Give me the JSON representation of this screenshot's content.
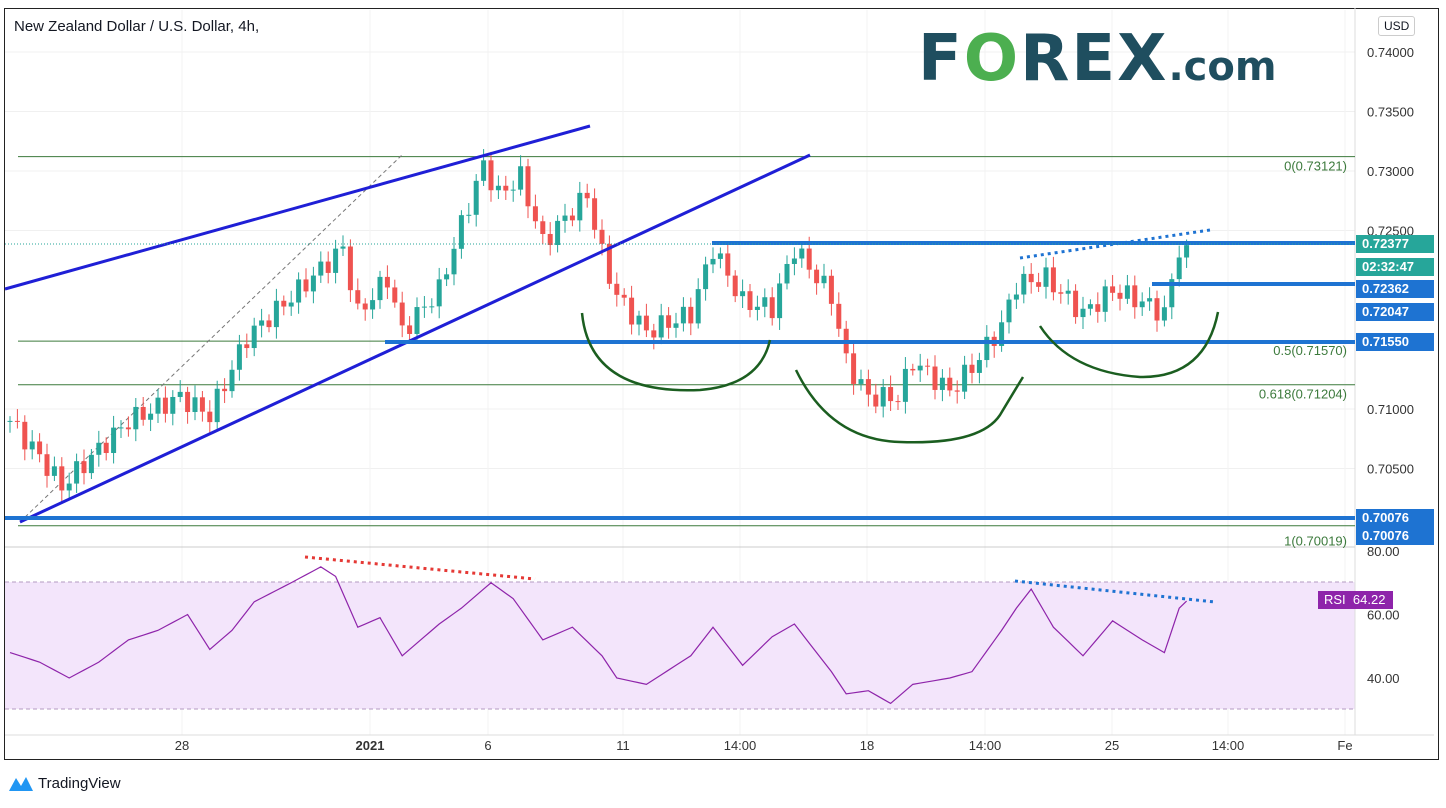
{
  "header": {
    "title": "New Zealand Dollar / U.S. Dollar, 4h,",
    "currency": "USD"
  },
  "logo": {
    "brand_a": "F",
    "brand_o": "O",
    "brand_b": "REX",
    ".com": ".com"
  },
  "footer": {
    "brand": "TradingView"
  },
  "colors": {
    "up": "#26a69a",
    "down": "#ef5350",
    "levels": "#1e73d2",
    "trend": "#1f1fd6",
    "fib": "#3c7a3c",
    "rsi": "#8e24aa",
    "rsi_band": "#f3e5fb"
  },
  "chart_data": [
    {
      "type": "candlestick",
      "title": "New Zealand Dollar / U.S. Dollar, 4h,",
      "ylim": [
        0.7,
        0.74
      ],
      "y_ticks": [
        "0.74000",
        "0.73500",
        "0.73000",
        "0.72500",
        "0.71000",
        "0.70500"
      ],
      "x_ticks": [
        "28",
        "2021",
        "6",
        "11",
        "14:00",
        "18",
        "14:00",
        "25",
        "14:00",
        "Fe"
      ],
      "price_path_note_units": "bar index, price",
      "price_path": [
        [
          0,
          0.709
        ],
        [
          4,
          0.706
        ],
        [
          7,
          0.7035
        ],
        [
          11,
          0.706
        ],
        [
          16,
          0.709
        ],
        [
          23,
          0.711
        ],
        [
          27,
          0.7095
        ],
        [
          32,
          0.716
        ],
        [
          39,
          0.72
        ],
        [
          45,
          0.7235
        ],
        [
          47,
          0.718
        ],
        [
          51,
          0.721
        ],
        [
          53,
          0.7165
        ],
        [
          58,
          0.72
        ],
        [
          61,
          0.7255
        ],
        [
          64,
          0.7305
        ],
        [
          66,
          0.728
        ],
        [
          69,
          0.7295
        ],
        [
          72,
          0.724
        ],
        [
          78,
          0.728
        ],
        [
          80,
          0.723
        ],
        [
          82,
          0.7195
        ],
        [
          86,
          0.7165
        ],
        [
          92,
          0.718
        ],
        [
          95,
          0.7235
        ],
        [
          99,
          0.719
        ],
        [
          103,
          0.7185
        ],
        [
          106,
          0.7235
        ],
        [
          111,
          0.7195
        ],
        [
          113,
          0.714
        ],
        [
          116,
          0.711
        ],
        [
          120,
          0.711
        ],
        [
          122,
          0.714
        ],
        [
          127,
          0.7115
        ],
        [
          130,
          0.7135
        ],
        [
          134,
          0.717
        ],
        [
          136,
          0.7205
        ],
        [
          140,
          0.721
        ],
        [
          145,
          0.718
        ],
        [
          149,
          0.72
        ],
        [
          153,
          0.719
        ],
        [
          156,
          0.718
        ],
        [
          158,
          0.7235
        ],
        [
          159,
          0.72377
        ]
      ],
      "fib_levels": [
        {
          "label": "0(0.73121)",
          "price": 0.73121
        },
        {
          "label": "0.5(0.71570)",
          "price": 0.7157
        },
        {
          "label": "0.618(0.71204)",
          "price": 0.71204
        },
        {
          "label": "1(0.70019)",
          "price": 0.70019
        }
      ],
      "price_labels": [
        {
          "text": "0.72377",
          "price": 0.72377,
          "color": "#26a69a"
        },
        {
          "text": "02:32:47",
          "color": "#26a69a"
        },
        {
          "text": "0.72362",
          "price": 0.72362,
          "color": "#1e73d2"
        },
        {
          "text": "0.72047",
          "price": 0.72047,
          "color": "#1e73d2"
        },
        {
          "text": "0.71550",
          "price": 0.7155,
          "color": "#1e73d2"
        },
        {
          "text": "0.70076",
          "price": 0.70076,
          "color": "#1e73d2"
        },
        {
          "text": "0.70076",
          "price": 0.70076,
          "color": "#1e73d2"
        }
      ]
    },
    {
      "type": "line",
      "name": "RSI",
      "last_value": "64.22",
      "y_ticks": [
        "80.00",
        "60.00",
        "40.00"
      ],
      "band": [
        30,
        70
      ],
      "values": [
        [
          0,
          48
        ],
        [
          4,
          45
        ],
        [
          8,
          40
        ],
        [
          12,
          45
        ],
        [
          16,
          52
        ],
        [
          20,
          55
        ],
        [
          24,
          60
        ],
        [
          27,
          49
        ],
        [
          30,
          55
        ],
        [
          33,
          64
        ],
        [
          38,
          70
        ],
        [
          42,
          75
        ],
        [
          44,
          72
        ],
        [
          47,
          56
        ],
        [
          50,
          59
        ],
        [
          53,
          47
        ],
        [
          58,
          57
        ],
        [
          61,
          62
        ],
        [
          65,
          70
        ],
        [
          68,
          65
        ],
        [
          72,
          52
        ],
        [
          76,
          56
        ],
        [
          80,
          47
        ],
        [
          82,
          40
        ],
        [
          86,
          38
        ],
        [
          92,
          47
        ],
        [
          95,
          56
        ],
        [
          99,
          44
        ],
        [
          103,
          53
        ],
        [
          106,
          57
        ],
        [
          111,
          42
        ],
        [
          113,
          35
        ],
        [
          116,
          36
        ],
        [
          119,
          32
        ],
        [
          122,
          38
        ],
        [
          127,
          40
        ],
        [
          130,
          42
        ],
        [
          134,
          55
        ],
        [
          136,
          62
        ],
        [
          138,
          68
        ],
        [
          141,
          56
        ],
        [
          145,
          47
        ],
        [
          149,
          58
        ],
        [
          153,
          52
        ],
        [
          156,
          48
        ],
        [
          158,
          62
        ],
        [
          159,
          64.22
        ]
      ]
    }
  ]
}
